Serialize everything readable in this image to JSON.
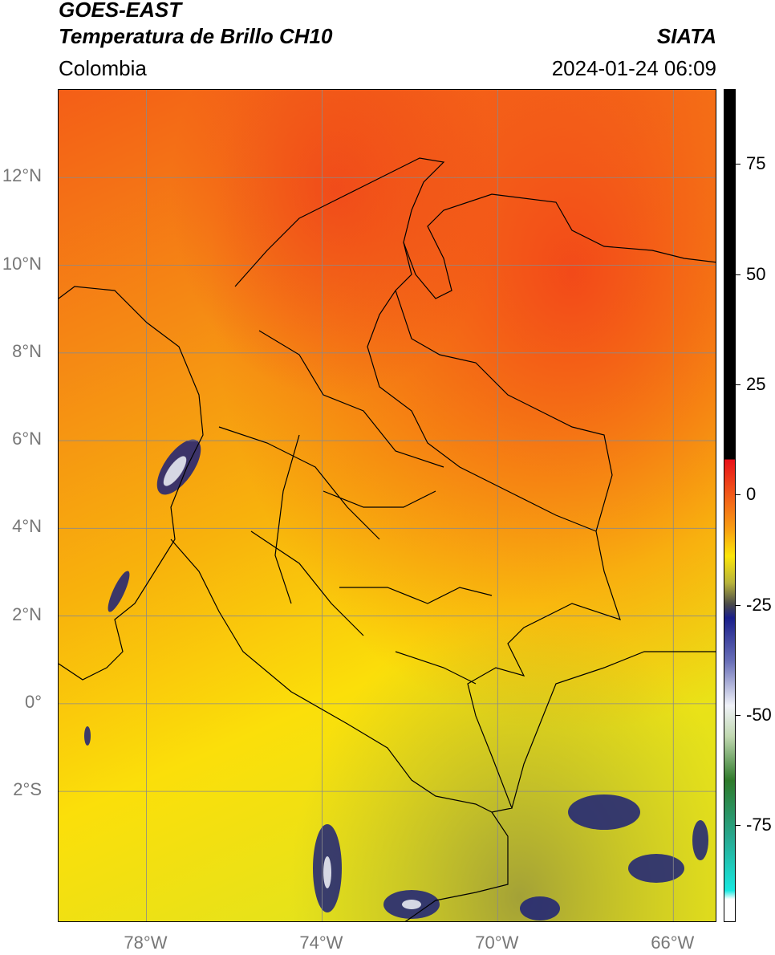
{
  "header": {
    "satellite": "GOES-EAST",
    "product": "Temperatura de Brillo CH10",
    "region": "Colombia",
    "brand": "SIATA",
    "timestamp": "2024-01-24 06:09"
  },
  "map": {
    "lat_labels": [
      {
        "text": "12°N",
        "lat": 12
      },
      {
        "text": "10°N",
        "lat": 10
      },
      {
        "text": "8°N",
        "lat": 8
      },
      {
        "text": "6°N",
        "lat": 6
      },
      {
        "text": "4°N",
        "lat": 4
      },
      {
        "text": "2°N",
        "lat": 2
      },
      {
        "text": "0°",
        "lat": 0
      },
      {
        "text": "2°S",
        "lat": -2
      }
    ],
    "lon_labels": [
      {
        "text": "78°W",
        "lon": -78
      },
      {
        "text": "74°W",
        "lon": -74
      },
      {
        "text": "70°W",
        "lon": -70
      },
      {
        "text": "66°W",
        "lon": -66
      }
    ],
    "lon_range": [
      -80,
      -65
    ],
    "lat_range": [
      -5,
      14
    ],
    "gridlines": true
  },
  "colorbar": {
    "ticks": [
      {
        "text": "75",
        "value": 75
      },
      {
        "text": "50",
        "value": 50
      },
      {
        "text": "25",
        "value": 25
      },
      {
        "text": "0",
        "value": 0
      },
      {
        "text": "-25",
        "value": -25
      },
      {
        "text": "-50",
        "value": -50
      },
      {
        "text": "-75",
        "value": -75
      }
    ],
    "range": [
      -97,
      92
    ]
  },
  "colors": {
    "orange": "#f26a1b",
    "yellow": "#fbe70a",
    "navy": "#1a1f7a",
    "gridline": "#8a8a8a"
  }
}
